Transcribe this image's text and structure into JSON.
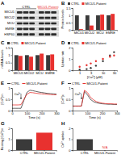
{
  "chart_data": [
    {
      "type": "blot",
      "title": "A",
      "lanes": [
        "CTRL",
        "MICU1-Patient"
      ],
      "colors": [
        "#000000",
        "#e8312f"
      ],
      "rows": [
        "MICU1",
        "MICU2",
        "MCU",
        "EMRE",
        "HSP60"
      ]
    },
    {
      "type": "bar",
      "title": "B",
      "ylabel": "Protein levels",
      "categories": [
        "MICU1",
        "MICU2",
        "MCU",
        "EMRE"
      ],
      "series": [
        {
          "name": "CTRL",
          "color": "#3a3a3a",
          "values": [
            1,
            1,
            1,
            1
          ]
        },
        {
          "name": "MICU1-Patient",
          "color": "#e8312f",
          "values": [
            0.05,
            0.3,
            1.05,
            1.1
          ]
        }
      ],
      "ylim": [
        0,
        1.5
      ],
      "yticks": [
        0,
        0.5,
        1,
        1.5
      ],
      "legend": "top"
    },
    {
      "type": "bar",
      "title": "C",
      "ylabel": "mRNA levels",
      "categories": [
        "MICU1",
        "MICU2",
        "MCU",
        "EMRE"
      ],
      "series": [
        {
          "name": "CTRL",
          "color": "#3a3a3a",
          "values": [
            1,
            1,
            1,
            1
          ]
        },
        {
          "name": "MICU1-Patient",
          "color": "#e8312f",
          "values": [
            0.95,
            0.9,
            1.1,
            1.05
          ]
        }
      ],
      "ylim": [
        0,
        1.5
      ],
      "yticks": [
        0,
        0.5,
        1,
        1.5
      ],
      "legend": "top"
    },
    {
      "type": "scatter",
      "title": "D",
      "xlabel": "[Ca²⁺] (μM)",
      "ylabel": "Uptake rate",
      "log": "x",
      "marker": "circle",
      "series": [
        {
          "name": "CTRL",
          "color": "#3a3a3a",
          "x": [
            1,
            2,
            3,
            5,
            10,
            20,
            30
          ],
          "values": [
            0.05,
            0.1,
            0.2,
            0.4,
            0.8,
            1.3,
            1.6
          ]
        },
        {
          "name": "MICU1-Patient",
          "color": "#e8312f",
          "x": [
            1,
            2,
            3,
            5,
            10,
            20,
            30
          ],
          "values": [
            0.3,
            0.45,
            0.6,
            0.8,
            1.0,
            1.2,
            1.3
          ]
        }
      ],
      "xlim": [
        0.5,
        40
      ],
      "xticks": [
        1,
        3,
        10,
        30
      ],
      "ylim": [
        0,
        2
      ],
      "yticks": [
        0,
        1,
        2
      ],
      "legend": "top"
    },
    {
      "type": "line",
      "title": "E",
      "xlabel": "Time (s)",
      "ylabel": "[Ca²⁺]m",
      "x": [
        0,
        20,
        40,
        60,
        80,
        100,
        120,
        140,
        160,
        180,
        200,
        220,
        240,
        260,
        280,
        300
      ],
      "series": [
        {
          "name": "CTRL",
          "color": "#3a3a3a",
          "values": [
            0.1,
            0.1,
            0.1,
            0.1,
            0.45,
            0.8,
            0.9,
            0.88,
            0.85,
            0.82,
            0.8,
            0.78,
            0.76,
            0.75,
            0.74,
            0.73
          ]
        },
        {
          "name": "MICU1-Patient",
          "color": "#e8312f",
          "values": [
            0.25,
            0.25,
            0.25,
            0.26,
            0.5,
            0.72,
            0.8,
            0.79,
            0.77,
            0.75,
            0.74,
            0.73,
            0.72,
            0.71,
            0.7,
            0.7
          ]
        }
      ],
      "xlim": [
        0,
        300
      ],
      "xticks": [
        0,
        100,
        200,
        300
      ],
      "ylim": [
        0,
        1
      ],
      "yticks": [
        0,
        0.5,
        1
      ],
      "legend": "top",
      "annotations": [
        {
          "text": "Ca²⁺",
          "x": 60
        }
      ]
    },
    {
      "type": "line",
      "title": "F",
      "xlabel": "Time (s)",
      "ylabel": "[Ca²⁺]c",
      "x": [
        0,
        20,
        40,
        60,
        80,
        100,
        120,
        140,
        160,
        180,
        200,
        220,
        240,
        260,
        280,
        300
      ],
      "series": [
        {
          "name": "CTRL",
          "color": "#3a3a3a",
          "values": [
            0.2,
            0.2,
            0.2,
            0.2,
            0.85,
            0.7,
            0.5,
            0.4,
            0.35,
            0.32,
            0.3,
            0.29,
            0.28,
            0.28,
            0.27,
            0.27
          ]
        },
        {
          "name": "MICU1-Patient",
          "color": "#e8312f",
          "values": [
            0.2,
            0.2,
            0.2,
            0.2,
            0.9,
            0.8,
            0.6,
            0.48,
            0.4,
            0.36,
            0.33,
            0.31,
            0.3,
            0.3,
            0.29,
            0.29
          ]
        }
      ],
      "xlim": [
        0,
        300
      ],
      "xticks": [
        0,
        100,
        200,
        300
      ],
      "ylim": [
        0,
        1
      ],
      "yticks": [
        0,
        0.5,
        1
      ],
      "legend": "top",
      "annotations": [
        {
          "text": "Ca²⁺",
          "x": 60
        }
      ]
    },
    {
      "type": "bar",
      "title": "G",
      "ylabel": "Resting [Ca²⁺]m",
      "categories": [
        "CTRL",
        "MICU1-Patient"
      ],
      "values": [
        1,
        1.6
      ],
      "colors": [
        "#3a3a3a",
        "#e8312f"
      ],
      "ylim": [
        0,
        2
      ],
      "yticks": [
        0,
        1,
        2
      ]
    },
    {
      "type": "bar",
      "title": "H",
      "ylabel": "Ca²⁺ uptake",
      "categories": [
        "CTRL",
        "MICU1-Patient"
      ],
      "values": [
        1,
        null
      ],
      "colors": [
        "#3a3a3a",
        "#e8312f"
      ],
      "ylim": [
        0,
        2
      ],
      "yticks": [
        0,
        1,
        2
      ],
      "annotations": [
        {
          "text": "N/A",
          "x": "MICU1-Patient"
        }
      ]
    }
  ]
}
